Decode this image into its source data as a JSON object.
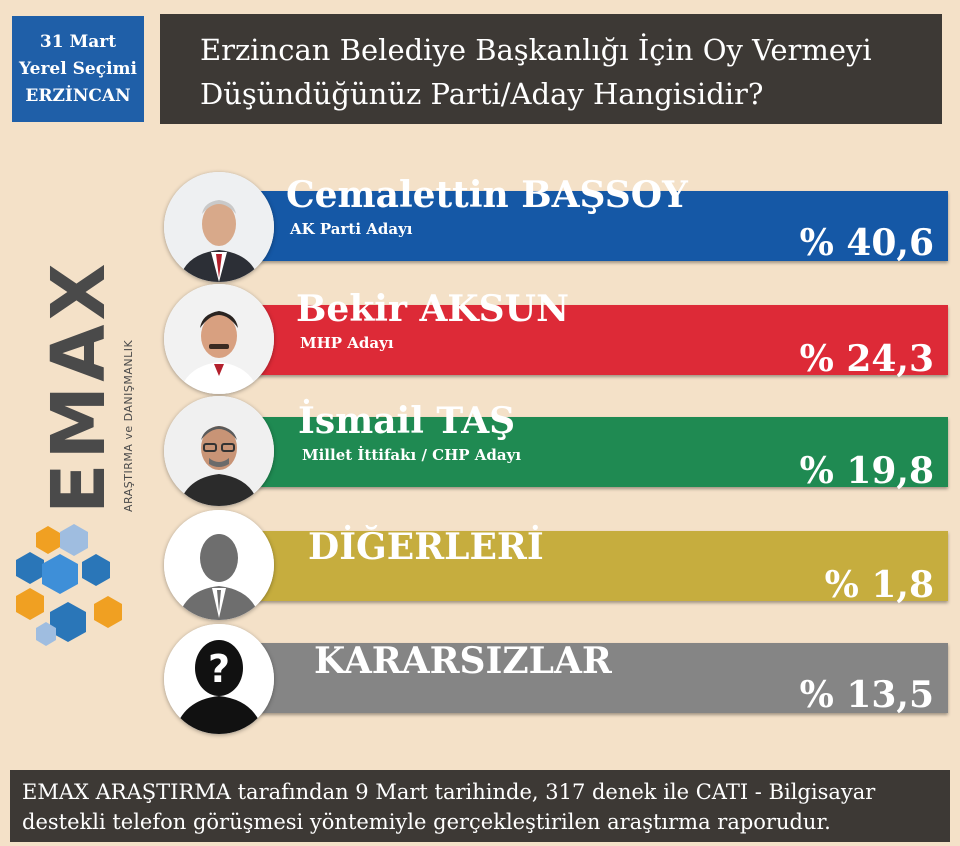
{
  "badge": {
    "line1": "31 Mart",
    "line2": "Yerel Seçimi",
    "line3": "ERZİNCAN",
    "color": "#1f5fa8"
  },
  "question": {
    "line1": "Erzincan Belediye Başkanlığı İçin Oy Vermeyi",
    "line2": "Düşündüğünüz Parti/Aday Hangisidir?"
  },
  "logo": {
    "brand": "EMAX",
    "tagline": "ARAŞTIRMA ve DANIŞMANLIK",
    "colors": {
      "text": "#4a4a4a",
      "x": "#f0a022",
      "hex_blue": "#2a76b8",
      "hex_orange": "#f0a022"
    }
  },
  "chart_data": {
    "type": "bar",
    "title": "Erzincan Belediye Başkanlığı İçin Oy Vermeyi Düşündüğünüz Parti/Aday Hangisidir?",
    "categories": [
      "Cemalettin BAŞSOY",
      "Bekir AKSUN",
      "İsmail TAŞ",
      "DİĞERLERİ",
      "KARARSIZLAR"
    ],
    "subtitles": [
      "AK Parti Adayı",
      "MHP Adayı",
      "Millet İttifakı / CHP Adayı",
      "",
      ""
    ],
    "values": [
      40.6,
      24.3,
      19.8,
      1.8,
      13.5
    ],
    "labels": [
      "% 40,6",
      "% 24,3",
      "% 19,8",
      "% 1,8",
      "% 13,5"
    ],
    "colors": [
      "#1558a6",
      "#dd2a37",
      "#1f8a52",
      "#c6ad3e",
      "#858585"
    ],
    "avatars": [
      "photo-man-suit",
      "photo-man-mustache",
      "photo-man-glasses",
      "silhouette-icon",
      "question-silhouette-icon"
    ]
  },
  "footer": {
    "line1": "EMAX ARAŞTIRMA tarafından 9 Mart tarihinde, 317 denek ile CATI - Bilgisayar",
    "line2": "destekli telefon görüşmesi yöntemiyle gerçekleştirilen araştırma raporudur."
  }
}
